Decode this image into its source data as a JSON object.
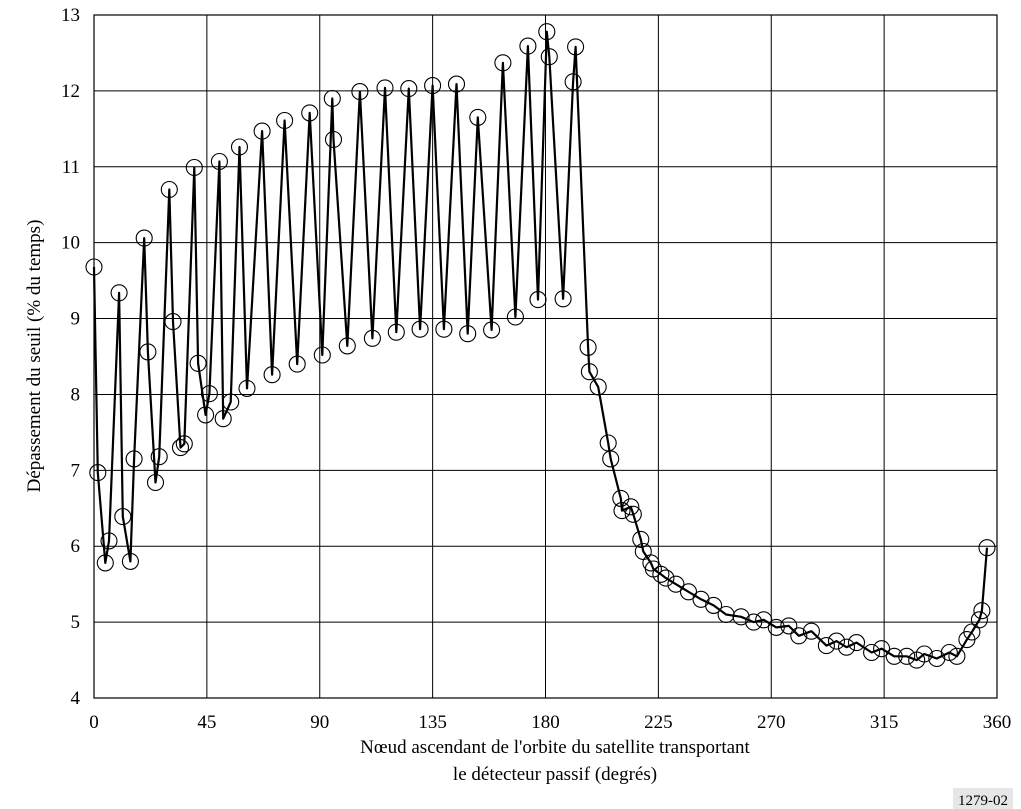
{
  "chart_data": {
    "type": "line",
    "title": "",
    "xlabel_lines": [
      "Nœud ascendant de l'orbite du satellite transportant",
      "le détecteur passif (degrés)"
    ],
    "ylabel": "Dépassement du seuil (% du temps)",
    "xlim": [
      0,
      360
    ],
    "ylim": [
      4,
      13
    ],
    "xticks": [
      0,
      45,
      90,
      135,
      180,
      225,
      270,
      315,
      360
    ],
    "yticks": [
      4,
      5,
      6,
      7,
      8,
      9,
      10,
      11,
      12,
      13
    ],
    "grid": true,
    "marker": "circle",
    "line_color": "#000000",
    "figure_code": "1279-02",
    "series": [
      {
        "x": [
          0,
          1.5,
          4.5,
          6,
          10,
          11.5,
          14.5,
          16,
          20,
          21.5,
          24.5,
          26,
          30,
          31.5,
          34.5,
          36,
          40,
          41.5,
          44.5,
          46,
          50,
          51.5,
          54.5,
          58,
          61,
          67,
          71,
          76,
          81,
          86,
          91,
          95,
          95.5,
          101,
          106,
          111,
          116,
          120.5,
          125.5,
          130,
          135,
          139.5,
          144.5,
          149,
          153,
          158.5,
          163,
          168,
          173,
          177,
          180.5,
          181.5,
          187,
          191,
          192,
          197,
          197.5,
          201,
          205,
          206,
          210,
          210.5,
          214,
          215,
          218,
          219,
          222,
          223,
          226,
          228,
          232,
          237,
          242,
          247,
          252,
          258,
          263,
          267,
          272,
          277,
          281,
          286,
          292,
          296,
          300,
          304,
          310,
          314,
          319,
          324,
          328,
          331,
          336,
          341,
          344,
          348,
          350,
          353,
          354,
          356
        ],
        "y": [
          9.68,
          6.97,
          5.78,
          6.07,
          9.34,
          6.39,
          5.8,
          7.15,
          10.06,
          8.56,
          6.84,
          7.18,
          10.7,
          8.96,
          7.3,
          7.35,
          10.99,
          8.41,
          7.73,
          8.01,
          11.07,
          7.68,
          7.9,
          11.26,
          8.08,
          11.47,
          8.26,
          11.61,
          8.4,
          11.71,
          8.52,
          11.9,
          11.36,
          8.64,
          11.99,
          8.74,
          12.04,
          8.82,
          12.03,
          8.86,
          12.07,
          8.86,
          12.09,
          8.8,
          11.65,
          8.85,
          12.37,
          9.02,
          12.59,
          9.25,
          12.78,
          12.45,
          9.26,
          12.12,
          12.58,
          8.62,
          8.3,
          8.1,
          7.36,
          7.15,
          6.63,
          6.47,
          6.52,
          6.42,
          6.09,
          5.93,
          5.78,
          5.7,
          5.63,
          5.58,
          5.5,
          5.4,
          5.3,
          5.22,
          5.1,
          5.07,
          5.0,
          5.03,
          4.93,
          4.95,
          4.82,
          4.88,
          4.69,
          4.75,
          4.67,
          4.73,
          4.6,
          4.65,
          4.55,
          4.55,
          4.5,
          4.58,
          4.52,
          4.6,
          4.55,
          4.77,
          4.87,
          5.03,
          5.15,
          5.98
        ]
      }
    ]
  }
}
